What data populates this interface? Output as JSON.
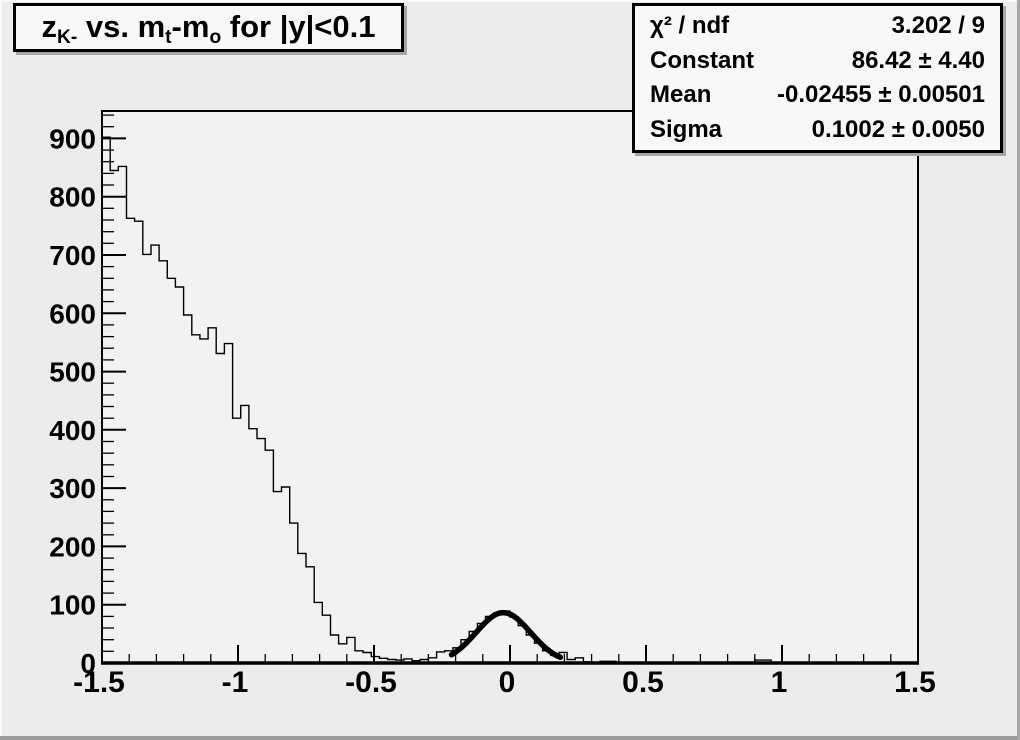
{
  "canvas": {
    "bg_outer": "#ececec",
    "plot_bg": "#f2f2f2",
    "box_bg": "#f8f8f8",
    "line_color": "#000000"
  },
  "title": {
    "segments": [
      {
        "t": "z"
      },
      {
        "t": "K-",
        "sub": true
      },
      {
        "t": " vs. m"
      },
      {
        "t": "t",
        "sub": true
      },
      {
        "t": "-m"
      },
      {
        "t": "o",
        "sub": true
      },
      {
        "t": " for |y|<0.1"
      }
    ],
    "plain_text": "z_{K-} vs. m_t-m_o for |y|<0.1"
  },
  "stats": {
    "rows": [
      {
        "label": "χ² / ndf",
        "value": "3.202 / 9"
      },
      {
        "label": "Constant",
        "value": "86.42 ± 4.40"
      },
      {
        "label": "Mean",
        "value": "-0.02455 ± 0.00501"
      },
      {
        "label": "Sigma",
        "value": "0.1002 ± 0.0050"
      }
    ]
  },
  "chart_data": {
    "type": "bar",
    "subtype": "step-histogram-with-gaussian-fit",
    "title": "z_{K-} vs. m_t-m_o for |y|<0.1",
    "xlabel": "",
    "ylabel": "",
    "grid": false,
    "legend_position": "none",
    "x_axis": {
      "min": -1.5,
      "max": 1.5,
      "major_tick_step": 0.5,
      "minor_tick_step": 0.1,
      "tick_labels": [
        "-1.5",
        "-1",
        "-0.5",
        "0",
        "0.5",
        "1",
        "1.5"
      ]
    },
    "y_axis": {
      "min": 0,
      "max": 947,
      "major_tick_step": 100,
      "minor_tick_step": 20,
      "tick_labels": [
        "0",
        "100",
        "200",
        "300",
        "400",
        "500",
        "600",
        "700",
        "800",
        "900"
      ]
    },
    "bins": {
      "x_start": -1.5,
      "bin_width": 0.03,
      "values": [
        902,
        845,
        852,
        763,
        758,
        701,
        717,
        690,
        660,
        645,
        597,
        563,
        556,
        575,
        531,
        548,
        420,
        442,
        402,
        385,
        365,
        294,
        302,
        240,
        188,
        165,
        104,
        82,
        48,
        33,
        44,
        21,
        18,
        11,
        8,
        6,
        5,
        7,
        4,
        6,
        9,
        19,
        21,
        26,
        40,
        54,
        68,
        80,
        86,
        89,
        79,
        64,
        48,
        34,
        21,
        13,
        18,
        6,
        9,
        2,
        1,
        3,
        3,
        0,
        0,
        0,
        0,
        0,
        0,
        0,
        0,
        0,
        0,
        0,
        0,
        0,
        0,
        0,
        0,
        0,
        5,
        5,
        0,
        0,
        0,
        0,
        0,
        0,
        0,
        0,
        0,
        0,
        0,
        0,
        0,
        0,
        0,
        0,
        0,
        0
      ]
    },
    "fit": {
      "shape": "gaussian",
      "constant": 86.42,
      "mean": -0.02455,
      "sigma": 0.1002,
      "chi2": 3.202,
      "ndf": 9,
      "draw_range": [
        -0.215,
        0.185
      ]
    }
  }
}
